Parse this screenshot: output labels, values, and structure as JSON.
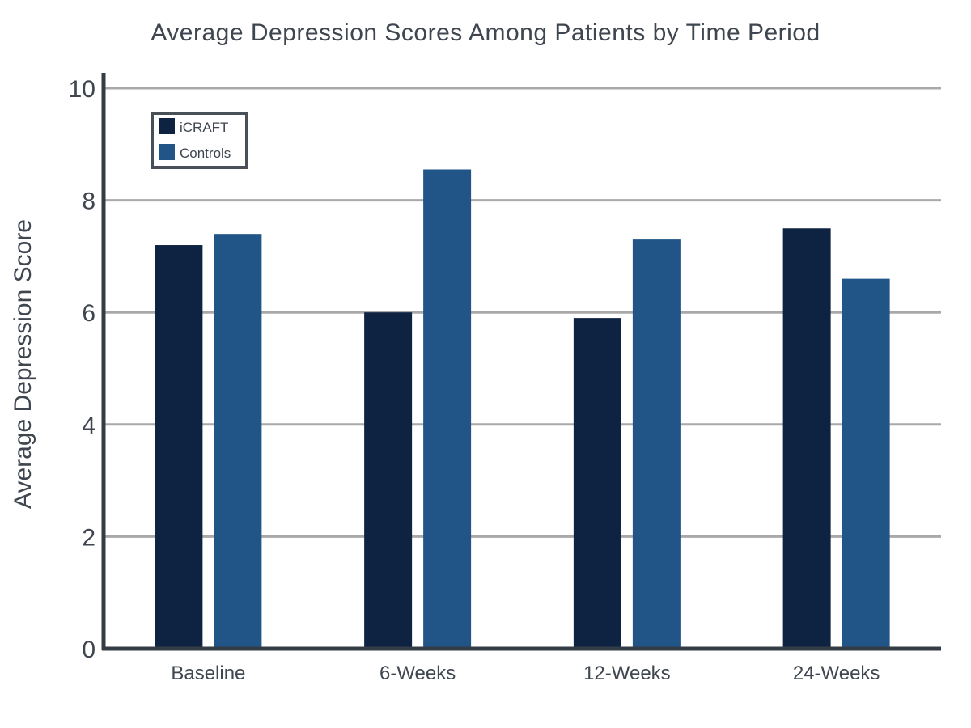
{
  "chart_data": {
    "type": "bar",
    "title": "Average Depression Scores Among Patients by Time Period",
    "xlabel": "",
    "ylabel": "Average Depression Score",
    "categories": [
      "Baseline",
      "6-Weeks",
      "12-Weeks",
      "24-Weeks"
    ],
    "series": [
      {
        "name": "iCRAFT",
        "values": [
          7.2,
          6.0,
          5.9,
          7.5
        ],
        "color": "#0e2242"
      },
      {
        "name": "Controls",
        "values": [
          7.4,
          8.55,
          7.3,
          6.6
        ],
        "color": "#215588"
      }
    ],
    "ylim": [
      0,
      10
    ],
    "yticks": [
      0,
      2,
      4,
      6,
      8,
      10
    ],
    "ytick_labels": [
      "0",
      "2",
      "4",
      "6",
      "8",
      "10"
    ],
    "grid": true,
    "gridline_color": "#a9a9a9",
    "axis_color": "#343c45",
    "legend": {
      "position": "top-left",
      "border_color": "#4a5058"
    }
  }
}
